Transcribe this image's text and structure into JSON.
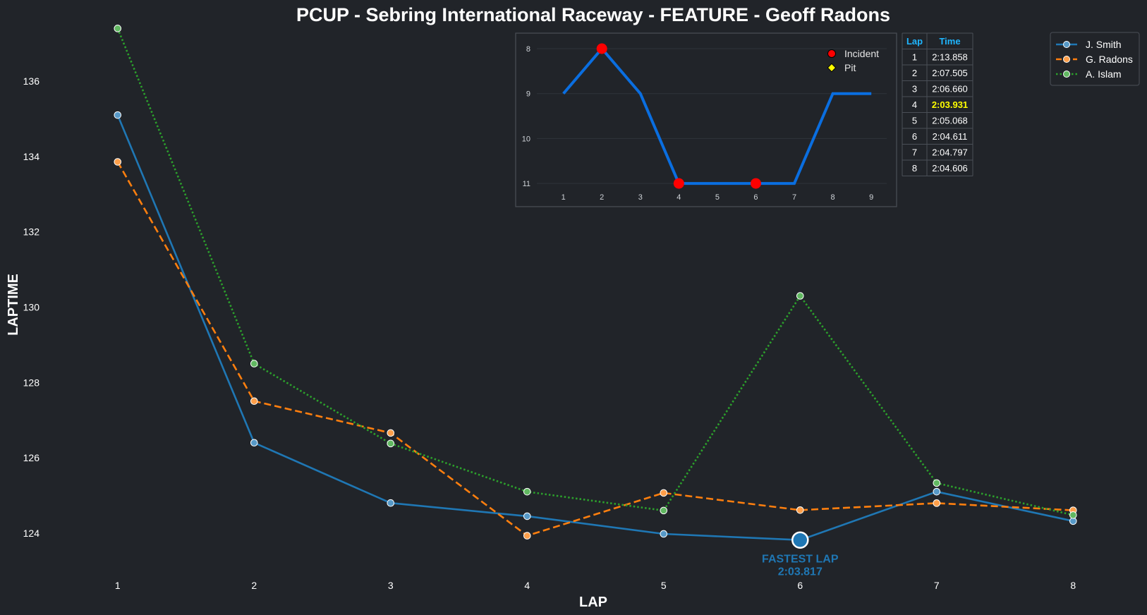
{
  "chart_data": [
    {
      "type": "line",
      "title": "PCUP - Sebring International Raceway - FEATURE - Geoff Radons",
      "xlabel": "LAP",
      "ylabel": "LAPTIME",
      "x": [
        1,
        2,
        3,
        4,
        5,
        6,
        7,
        8
      ],
      "xlim": [
        0.5,
        8.2
      ],
      "ylim": [
        122.8,
        137.5
      ],
      "yticks": [
        124,
        126,
        128,
        130,
        132,
        134,
        136
      ],
      "grid": false,
      "legend_position": "top-right",
      "series": [
        {
          "name": "J. Smith",
          "color": "#1f77b4",
          "dash": "solid",
          "values": [
            135.1,
            126.4,
            124.8,
            124.45,
            123.98,
            123.817,
            125.1,
            124.32
          ]
        },
        {
          "name": "G. Radons",
          "color": "#ff7f0e",
          "dash": "dashed",
          "values": [
            133.858,
            127.505,
            126.66,
            123.931,
            125.068,
            124.611,
            124.797,
            124.606
          ]
        },
        {
          "name": "A. Islam",
          "color": "#2ca02c",
          "dash": "dotted",
          "values": [
            137.4,
            128.5,
            126.38,
            125.1,
            124.6,
            130.3,
            125.33,
            124.48
          ]
        }
      ],
      "annotation": {
        "x": 6,
        "y": 123.817,
        "label": "FASTEST LAP",
        "value": "2:03.817"
      }
    },
    {
      "type": "line",
      "subplot": "position-inset",
      "x": [
        1,
        2,
        3,
        4,
        5,
        6,
        7,
        8,
        9
      ],
      "values": [
        9,
        8,
        9,
        11,
        11,
        11,
        11,
        9,
        9
      ],
      "ylim": [
        11.25,
        7.65
      ],
      "yticks": [
        8,
        9,
        10,
        11
      ],
      "color": "#0a6ee0",
      "incidents": [
        2,
        4,
        6
      ],
      "pits": [],
      "legend": [
        {
          "label": "Incident",
          "color": "#ff0000",
          "marker": "circle"
        },
        {
          "label": "Pit",
          "color": "#ffff00",
          "marker": "diamond"
        }
      ]
    },
    {
      "type": "table",
      "columns": [
        "Lap",
        "Time"
      ],
      "header_color": "#1fb6ff",
      "highlight_row": 4,
      "highlight_color": "#ffff00",
      "rows": [
        [
          "1",
          "2:13.858"
        ],
        [
          "2",
          "2:07.505"
        ],
        [
          "3",
          "2:06.660"
        ],
        [
          "4",
          "2:03.931"
        ],
        [
          "5",
          "2:05.068"
        ],
        [
          "6",
          "2:04.611"
        ],
        [
          "7",
          "2:04.797"
        ],
        [
          "8",
          "2:04.606"
        ]
      ]
    }
  ]
}
